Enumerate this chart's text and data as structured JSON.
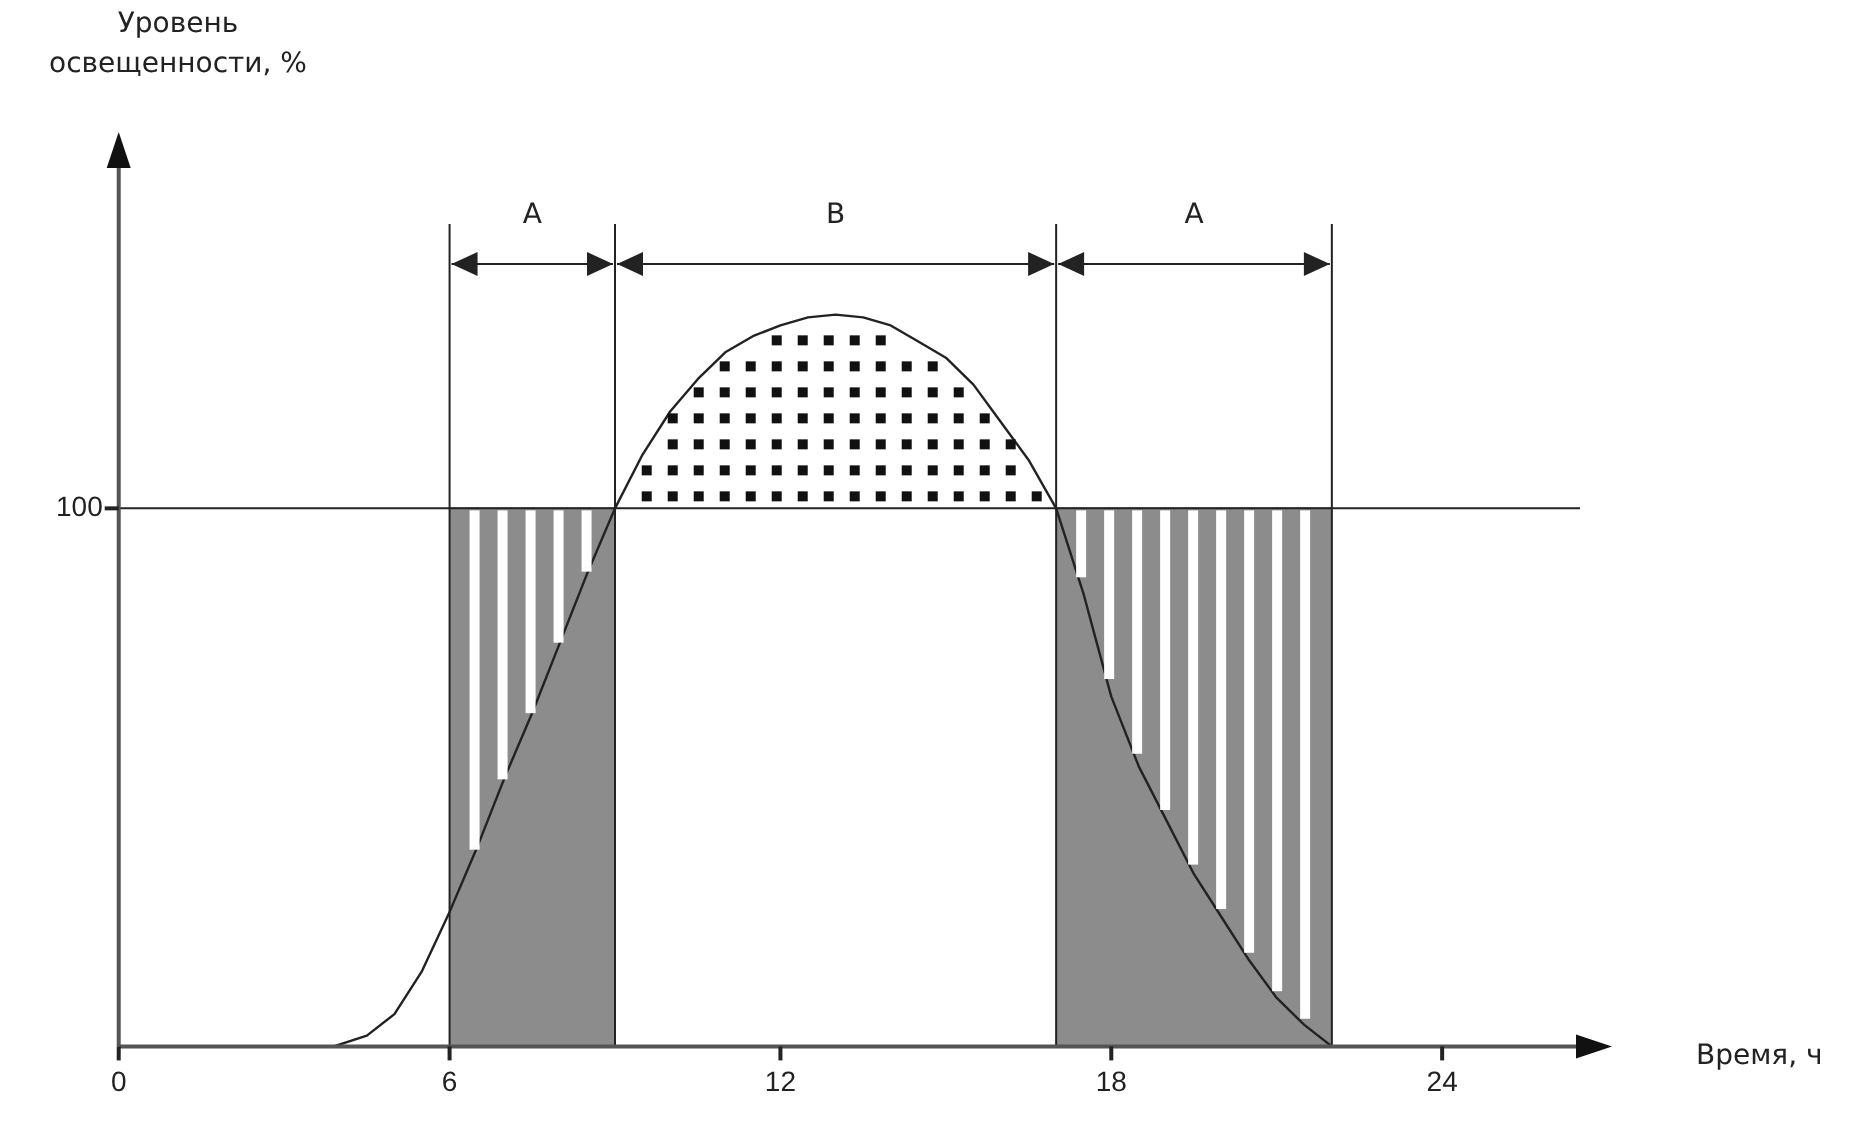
{
  "chart_data": {
    "type": "line",
    "xlabel": "Время, ч",
    "ylabel": "Уровень освещенности, %",
    "xlim": [
      0,
      26.5
    ],
    "xticks": [
      0,
      6,
      12,
      18,
      24
    ],
    "ylim": [
      0,
      164
    ],
    "yticks": [
      100
    ],
    "legend": false,
    "marker": "none",
    "series": [
      {
        "type": "area",
        "color": "#8c8c8c",
        "x": [
          6,
          9
        ],
        "values": [
          100,
          100
        ]
      },
      {
        "type": "area",
        "color": "#8c8c8c",
        "x": [
          17,
          22
        ],
        "values": [
          100,
          100
        ]
      },
      {
        "color": "#222222",
        "x": [
          3.9,
          4.5,
          5,
          5.5,
          6,
          6.5,
          7,
          7.5,
          8,
          8.5,
          9,
          9.5,
          10,
          10.5,
          11,
          11.5,
          12,
          12.5,
          13,
          13.5,
          14,
          14.5,
          15,
          15.5,
          16,
          16.5,
          17,
          17.5,
          18,
          18.5,
          19,
          19.5,
          20,
          20.5,
          21,
          21.5,
          22
        ],
        "values": [
          0,
          2,
          6,
          14,
          25,
          37,
          50,
          62,
          75,
          88,
          100,
          110,
          118,
          124,
          129,
          132,
          134,
          135.5,
          136,
          135.5,
          134,
          131,
          128,
          123,
          116,
          109,
          100,
          84,
          65,
          52,
          42,
          32,
          24,
          16,
          9,
          4,
          0
        ]
      }
    ],
    "ref_lines": [
      {
        "axis": "y",
        "value": 100
      },
      {
        "axis": "x",
        "value": 6
      },
      {
        "axis": "x",
        "value": 9
      },
      {
        "axis": "x",
        "value": 17
      },
      {
        "axis": "x",
        "value": 22
      }
    ],
    "annotations": [
      "A",
      "B",
      "A"
    ]
  }
}
